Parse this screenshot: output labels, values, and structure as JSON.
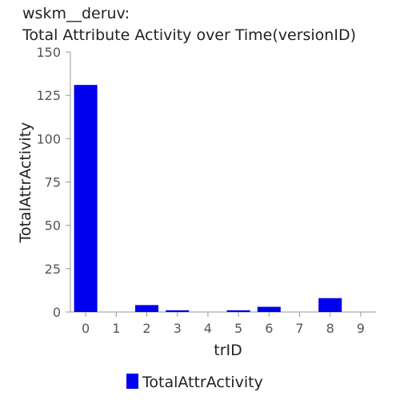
{
  "chart_data": {
    "type": "bar",
    "title": "wskm__deruv:",
    "subtitle": "Total Attribute Activity over Time(versionID)",
    "xlabel": "trID",
    "ylabel": "TotalAttrActivity",
    "categories": [
      "0",
      "1",
      "2",
      "3",
      "4",
      "5",
      "6",
      "7",
      "8",
      "9"
    ],
    "series": [
      {
        "name": "TotalAttrActivity",
        "values": [
          131,
          0,
          4,
          1,
          0,
          1,
          3,
          0,
          8,
          0
        ],
        "color": "#0000ee"
      }
    ],
    "ylim": [
      0,
      150
    ],
    "yticks": [
      0,
      25,
      50,
      75,
      100,
      125,
      150
    ],
    "grid": false,
    "legend": "bottom-center"
  }
}
